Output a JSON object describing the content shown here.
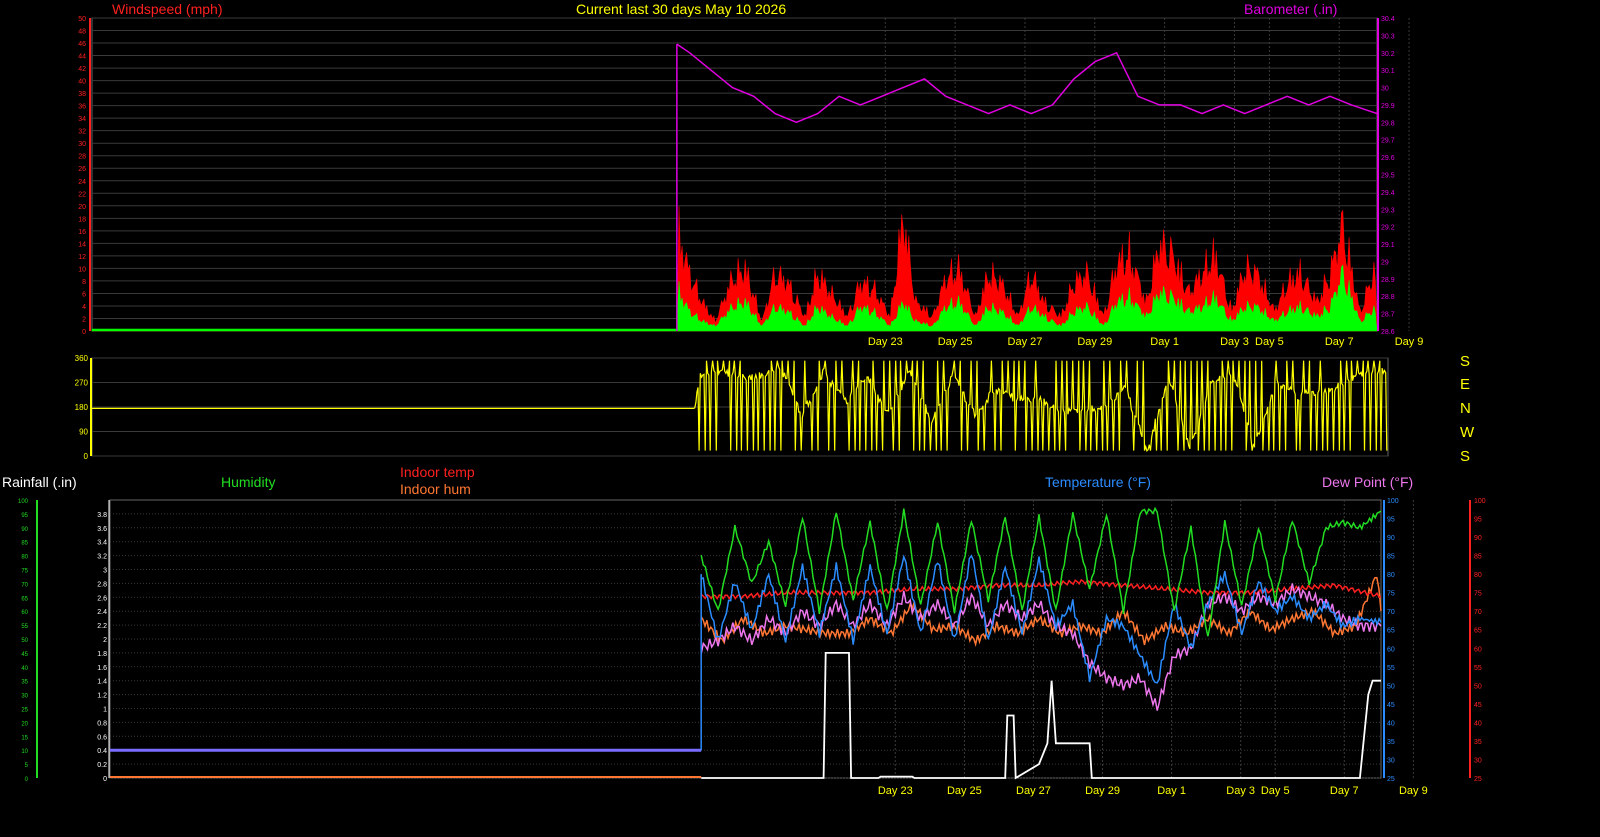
{
  "header": {
    "title": "Current last 30 days May 10 2026",
    "wind_label": "Windspeed (mph)",
    "baro_label": "Barometer (.in)"
  },
  "compass": {
    "letters": [
      "S",
      "E",
      "N",
      "W",
      "S"
    ]
  },
  "lower": {
    "rain_label": "Rainfall (.in)",
    "humidity_label": "Humidity",
    "indoor_temp_label": "Indoor temp",
    "indoor_hum_label": "Indoor hum",
    "temperature_label": "Temperature (°F)",
    "dewpoint_label": "Dew Point (°F)"
  },
  "colors": {
    "background": "#000000",
    "grid": "#3a3a3a",
    "wind_avg": "#00ff00",
    "wind_gust": "#ff0000",
    "barometer": "#e000e0",
    "direction": "#ffff00",
    "humidity": "#22dd22",
    "indoor_temp": "#ff2020",
    "indoor_hum": "#ff7733",
    "temperature": "#2a8cff",
    "dewpoint": "#ee77ee",
    "rain": "#ffffff",
    "axis_text_day": "#ffff00"
  },
  "chart_data": [
    {
      "type": "area",
      "name": "wind",
      "ylim": [
        0,
        50
      ],
      "yticks": [
        0,
        2,
        4,
        6,
        8,
        10,
        12,
        14,
        16,
        18,
        20,
        22,
        24,
        26,
        28,
        30,
        32,
        34,
        36,
        38,
        40,
        42,
        44,
        46,
        48,
        50
      ],
      "ylim_right": [
        28.6,
        30.4
      ],
      "yticks_right": [
        28.6,
        28.7,
        28.8,
        28.9,
        29,
        29.1,
        29.2,
        29.3,
        29.4,
        29.5,
        29.6,
        29.7,
        29.8,
        29.9,
        30,
        30.1,
        30.2,
        30.3,
        30.4
      ],
      "x_range_days": [
        0,
        30
      ],
      "x_ticks": [
        {
          "day": 21,
          "label": "Day 23"
        },
        {
          "day": 23,
          "label": "Day 25"
        },
        {
          "day": 25,
          "label": "Day 27"
        },
        {
          "day": 27,
          "label": "Day 29"
        },
        {
          "day": 29,
          "label": "Day 1"
        },
        {
          "day": 31,
          "label": "Day 3"
        },
        {
          "day": 32,
          "label": "Day 5"
        },
        {
          "day": 34,
          "label": "Day 7"
        },
        {
          "day": 36,
          "label": "Day 9"
        }
      ],
      "series": [
        {
          "name": "gust",
          "x": [
            0,
            13.7,
            13.75,
            14,
            14.3,
            14.6,
            15,
            15.3,
            15.7,
            16,
            16.3,
            16.7,
            17,
            17.3,
            17.7,
            18,
            18.3,
            18.7,
            19,
            19.3,
            19.7,
            20,
            20.3,
            20.7,
            21,
            21.3,
            21.7,
            22,
            22.3,
            22.7,
            23,
            23.3,
            23.7,
            24,
            24.3,
            24.7,
            25,
            25.3,
            25.7,
            26,
            26.3,
            26.7,
            27,
            27.3,
            27.7,
            28,
            28.3,
            28.7,
            29,
            29.3,
            29.7,
            30.1
          ],
          "values": [
            0,
            0,
            20,
            12,
            6,
            2,
            11,
            13,
            2,
            12,
            10,
            3,
            12,
            8,
            3,
            10,
            9,
            3,
            24,
            6,
            3,
            11,
            13,
            3,
            12,
            10,
            3,
            12,
            6,
            3,
            10,
            12,
            3,
            14,
            16,
            6,
            18,
            16,
            8,
            12,
            16,
            4,
            13,
            12,
            4,
            10,
            12,
            6,
            12,
            22,
            4,
            14
          ]
        },
        {
          "name": "average",
          "x": [
            0,
            13.7,
            13.75,
            14,
            14.3,
            14.6,
            15,
            15.3,
            15.7,
            16,
            16.3,
            16.7,
            17,
            17.3,
            17.7,
            18,
            18.3,
            18.7,
            19,
            19.3,
            19.7,
            20,
            20.3,
            20.7,
            21,
            21.3,
            21.7,
            22,
            22.3,
            22.7,
            23,
            23.3,
            23.7,
            24,
            24.3,
            24.7,
            25,
            25.3,
            25.7,
            26,
            26.3,
            26.7,
            27,
            27.3,
            27.7,
            28,
            28.3,
            28.7,
            29,
            29.3,
            29.7,
            30.1
          ],
          "values": [
            0.3,
            0.3,
            8,
            4,
            2,
            1,
            5,
            6,
            1,
            5,
            4,
            1,
            5,
            3,
            1,
            5,
            4,
            1,
            6,
            2,
            1,
            5,
            6,
            1,
            5,
            4,
            1,
            5,
            3,
            1,
            4,
            5,
            1,
            6,
            7,
            3,
            8,
            7,
            4,
            5,
            7,
            2,
            5,
            5,
            2,
            4,
            5,
            3,
            5,
            12,
            2,
            5
          ]
        },
        {
          "name": "barometer",
          "x": [
            13.7,
            14,
            14.5,
            15,
            15.5,
            16,
            16.5,
            17,
            17.5,
            18,
            18.5,
            19,
            19.5,
            20,
            20.5,
            21,
            21.5,
            22,
            22.5,
            23,
            23.5,
            24,
            24.5,
            25,
            25.5,
            26,
            26.5,
            27,
            27.5,
            28,
            28.5,
            29,
            29.5,
            30.1
          ],
          "values": [
            30.25,
            30.2,
            30.1,
            30.0,
            29.95,
            29.85,
            29.8,
            29.85,
            29.95,
            29.9,
            29.95,
            30.0,
            30.05,
            29.95,
            29.9,
            29.85,
            29.9,
            29.85,
            29.9,
            30.05,
            30.15,
            30.2,
            29.95,
            29.9,
            29.9,
            29.85,
            29.9,
            29.85,
            29.9,
            29.95,
            29.9,
            29.95,
            29.9,
            29.85
          ]
        }
      ]
    },
    {
      "type": "line",
      "name": "wind-direction",
      "ylim": [
        0,
        360
      ],
      "yticks": [
        0,
        90,
        180,
        270,
        360
      ],
      "x_range_days": [
        0,
        30
      ],
      "series": [
        {
          "name": "direction",
          "x": [
            0,
            14.0,
            14.1,
            14.5,
            15,
            15.5,
            16,
            16.5,
            17,
            17.5,
            18,
            18.5,
            19,
            19.5,
            20,
            20.5,
            21,
            21.5,
            22,
            22.5,
            23,
            23.5,
            24,
            24.5,
            25,
            25.5,
            26,
            26.5,
            27,
            27.5,
            28,
            28.5,
            29,
            29.5,
            30.1
          ],
          "values": [
            175,
            175,
            300,
            310,
            290,
            300,
            320,
            150,
            310,
            200,
            300,
            150,
            310,
            130,
            300,
            150,
            250,
            200,
            220,
            160,
            165,
            185,
            250,
            20,
            290,
            20,
            280,
            300,
            30,
            280,
            220,
            240,
            260,
            300,
            320
          ]
        }
      ]
    },
    {
      "type": "line",
      "name": "temperature-humidity-rain",
      "ylim": [
        0,
        4
      ],
      "yticks": [
        0,
        0.2,
        0.4,
        0.6,
        0.8,
        1,
        1.2,
        1.4,
        1.6,
        1.8,
        2,
        2.2,
        2.4,
        2.6,
        2.8,
        3,
        3.2,
        3.4,
        3.6,
        3.8
      ],
      "ylim_right": [
        25,
        100
      ],
      "yticks_right": [
        25,
        30,
        35,
        40,
        45,
        50,
        55,
        60,
        65,
        70,
        75,
        80,
        85,
        90,
        95,
        100
      ],
      "ylim_left_hum": [
        0,
        100
      ],
      "yticks_left_hum": [
        0,
        5,
        10,
        15,
        20,
        25,
        30,
        35,
        40,
        45,
        50,
        55,
        60,
        65,
        70,
        75,
        80,
        85,
        90,
        95,
        100
      ],
      "x_range_days": [
        0,
        30
      ],
      "x_ticks": [
        {
          "day": 21,
          "label": "Day 23"
        },
        {
          "day": 23,
          "label": "Day 25"
        },
        {
          "day": 25,
          "label": "Day 27"
        },
        {
          "day": 27,
          "label": "Day 29"
        },
        {
          "day": 29,
          "label": "Day 1"
        },
        {
          "day": 31,
          "label": "Day 3"
        },
        {
          "day": 32,
          "label": "Day 5"
        },
        {
          "day": 34,
          "label": "Day 7"
        },
        {
          "day": 36,
          "label": "Day 9"
        }
      ],
      "series": [
        {
          "name": "humidity",
          "x": [
            14,
            14.4,
            14.8,
            15.2,
            15.6,
            16,
            16.4,
            16.8,
            17.2,
            17.6,
            18,
            18.4,
            18.8,
            19.2,
            19.6,
            20,
            20.4,
            20.8,
            21.2,
            21.6,
            22,
            22.4,
            22.8,
            23.2,
            23.6,
            24,
            24.4,
            24.8,
            25.2,
            25.6,
            26,
            26.4,
            26.8,
            27.2,
            27.6,
            28,
            28.4,
            28.8,
            29.2,
            29.6,
            30.1
          ],
          "values": [
            80,
            60,
            90,
            70,
            85,
            62,
            94,
            60,
            96,
            64,
            92,
            60,
            96,
            62,
            92,
            60,
            93,
            64,
            94,
            60,
            94,
            60,
            95,
            68,
            95,
            60,
            96,
            96,
            60,
            90,
            50,
            92,
            62,
            90,
            64,
            93,
            70,
            90,
            92,
            90,
            96
          ]
        },
        {
          "name": "indoor-temp",
          "x": [
            14,
            15,
            16,
            17,
            18,
            19,
            20,
            21,
            22,
            23,
            24,
            25,
            26,
            27,
            28,
            29,
            30.1
          ],
          "values": [
            74,
            74,
            75,
            75,
            75,
            76,
            76,
            77,
            77,
            78,
            77,
            76,
            75,
            75,
            76,
            77,
            74
          ]
        },
        {
          "name": "indoor-hum",
          "x": [
            14,
            14.5,
            15,
            15.5,
            16,
            16.5,
            17,
            17.5,
            18,
            18.5,
            19,
            19.5,
            20,
            20.5,
            21,
            21.5,
            22,
            22.5,
            23,
            23.5,
            24,
            24.5,
            25,
            25.5,
            26,
            26.5,
            27,
            27.5,
            28,
            28.5,
            29,
            29.5,
            30,
            30.1
          ],
          "values": [
            68,
            62,
            68,
            64,
            66,
            65,
            64,
            64,
            68,
            64,
            72,
            65,
            66,
            62,
            66,
            64,
            68,
            64,
            66,
            64,
            70,
            62,
            66,
            64,
            68,
            64,
            70,
            65,
            68,
            70,
            64,
            66,
            80,
            70
          ]
        },
        {
          "name": "temperature",
          "x": [
            14,
            14.4,
            14.8,
            15.2,
            15.6,
            16,
            16.4,
            16.8,
            17.2,
            17.6,
            18,
            18.4,
            18.8,
            19.2,
            19.6,
            20,
            20.4,
            20.8,
            21.2,
            21.6,
            22,
            22.4,
            22.8,
            23.2,
            23.6,
            24,
            24.4,
            24.8,
            25.2,
            25.6,
            26,
            26.4,
            26.8,
            27.2,
            27.6,
            28,
            28.4,
            28.8,
            29.2,
            29.6,
            30.1
          ],
          "values": [
            80,
            62,
            78,
            65,
            80,
            62,
            82,
            64,
            82,
            62,
            82,
            64,
            85,
            64,
            84,
            62,
            86,
            62,
            82,
            64,
            84,
            66,
            72,
            52,
            68,
            66,
            58,
            50,
            72,
            60,
            72,
            80,
            64,
            78,
            70,
            74,
            68,
            72,
            66,
            68,
            67
          ]
        },
        {
          "name": "dewpoint",
          "x": [
            14,
            14.4,
            14.8,
            15.2,
            15.6,
            16,
            16.4,
            16.8,
            17.2,
            17.6,
            18,
            18.4,
            18.8,
            19.2,
            19.6,
            20,
            20.4,
            20.8,
            21.2,
            21.6,
            22,
            22.4,
            22.8,
            23.2,
            23.6,
            24,
            24.4,
            24.8,
            25.2,
            25.6,
            26,
            26.4,
            26.8,
            27.2,
            27.6,
            28,
            28.4,
            28.8,
            29.2,
            29.6,
            30.1
          ],
          "values": [
            60,
            62,
            66,
            62,
            68,
            64,
            70,
            66,
            72,
            66,
            72,
            66,
            74,
            68,
            72,
            66,
            74,
            66,
            72,
            68,
            72,
            66,
            64,
            56,
            52,
            50,
            52,
            44,
            58,
            60,
            72,
            74,
            70,
            74,
            72,
            76,
            74,
            72,
            68,
            66,
            66
          ]
        },
        {
          "name": "rain",
          "x": [
            14,
            16.9,
            16.95,
            17.5,
            17.55,
            18.2,
            18.25,
            19.0,
            19.05,
            21.2,
            21.25,
            21.4,
            21.45,
            22.0,
            22.2,
            22.3,
            22.4,
            22.45,
            23.2,
            23.25,
            29.6,
            29.8,
            29.9,
            30.1
          ],
          "values": [
            0,
            0,
            1.8,
            1.8,
            0,
            0,
            0.02,
            0.02,
            0,
            0,
            0.9,
            0.9,
            0,
            0.2,
            0.5,
            1.4,
            0.5,
            0.5,
            0.5,
            0,
            0,
            1.2,
            1.4,
            1.4
          ]
        },
        {
          "name": "rain-baseline",
          "x": [
            0,
            14
          ],
          "values": [
            0.4,
            0.4
          ]
        }
      ]
    }
  ]
}
